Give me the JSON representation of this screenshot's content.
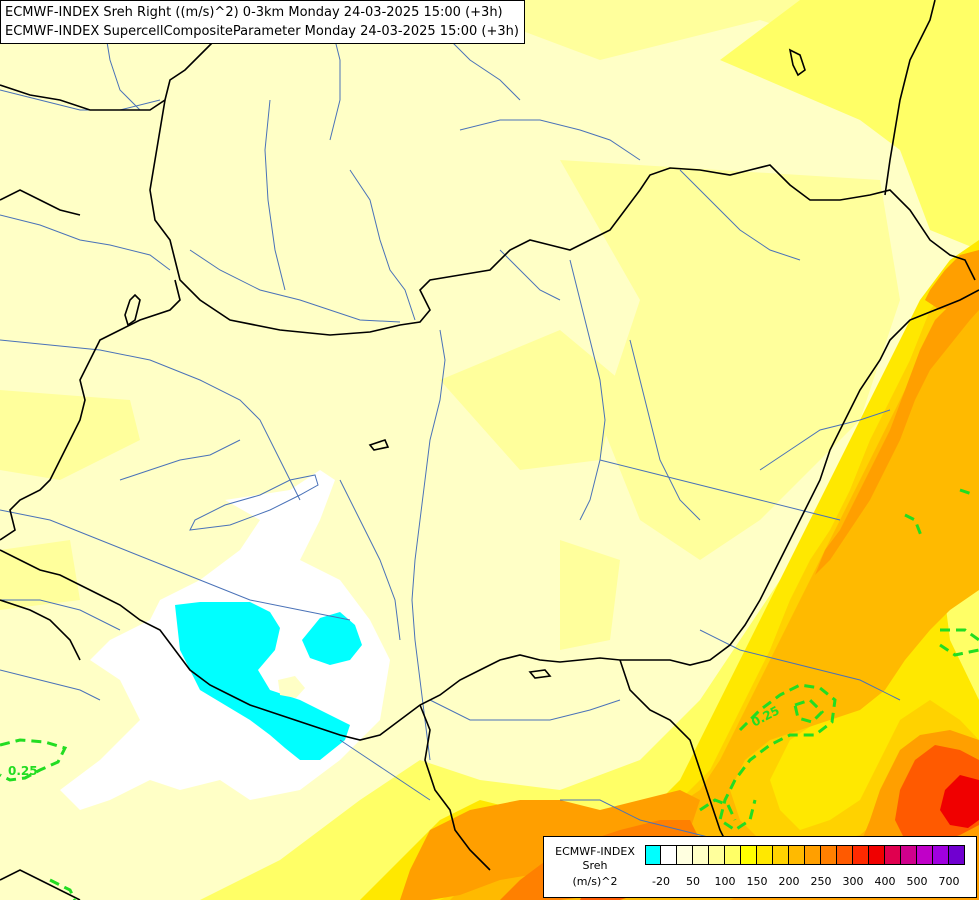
{
  "title": {
    "line1": "ECMWF-INDEX Sreh Right ((m/s)^2) 0-3km Monday 24-03-2025 15:00 (+3h)",
    "line2": "ECMWF-INDEX SupercellCompositeParameter Monday 24-03-2025 15:00 (+3h)"
  },
  "contour_labels": [
    {
      "text": "0.25",
      "anchor": "lower-left"
    },
    {
      "text": "0.25",
      "anchor": "lower-right"
    }
  ],
  "legend": {
    "line1": "ECMWF-INDEX",
    "line2": "Sreh",
    "line3": "(m/s)^2",
    "colors": [
      "#00ffff",
      "#ffffff",
      "#ffffe0",
      "#ffffc6",
      "#ffff9c",
      "#ffff66",
      "#ffff00",
      "#ffe800",
      "#ffd200",
      "#ffba00",
      "#ff9f00",
      "#ff8000",
      "#ff5a00",
      "#ff2a00",
      "#f00000",
      "#e0004f",
      "#d0008c",
      "#c000c8",
      "#a000e0",
      "#7000d0",
      "#4000c0",
      "#00008b"
    ],
    "ticks": [
      "-20",
      "50",
      "100",
      "150",
      "200",
      "250",
      "300",
      "400",
      "500",
      "700"
    ]
  },
  "colors": {
    "base": "#ffffc6",
    "border": "#000000",
    "river": "#4a72b8",
    "scp_contour": "#22dd22",
    "low_fill": "#00ffff"
  }
}
